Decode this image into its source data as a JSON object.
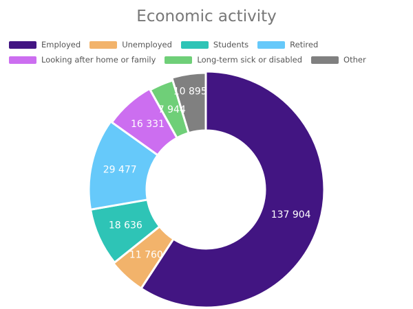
{
  "chart_data": {
    "type": "pie",
    "title": "Economic activity",
    "categories": [
      "Employed",
      "Unemployed",
      "Students",
      "Retired",
      "Looking after home or family",
      "Long-term sick or disabled",
      "Other"
    ],
    "values": [
      137904,
      11760,
      18636,
      29477,
      16331,
      7944,
      10895
    ],
    "labels": [
      "137 904",
      "11 760",
      "18 636",
      "29 477",
      "16 331",
      "7 944",
      "10 895"
    ],
    "colors": [
      "#421582",
      "#f2b36b",
      "#2ec4b6",
      "#66c9fa",
      "#cc6ef0",
      "#6fcf78",
      "#808080"
    ],
    "style": "donut",
    "legend_position": "top-left"
  }
}
